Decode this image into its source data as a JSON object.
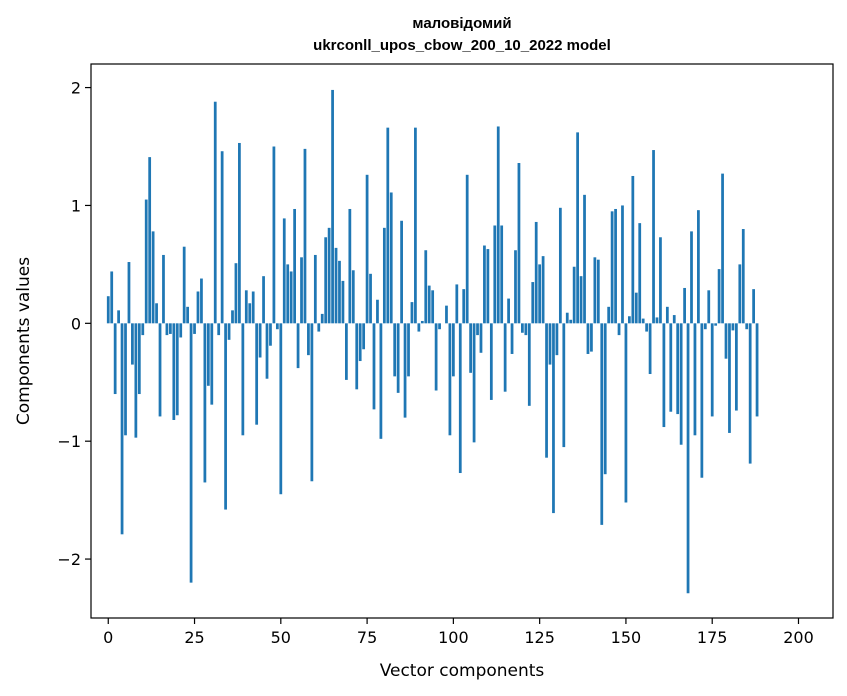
{
  "chart_data": {
    "type": "bar",
    "title_line1": "маловідомий",
    "title_line2": "ukrconll_upos_cbow_200_10_2022 model",
    "xlabel": "Vector components",
    "ylabel": "Components values",
    "xlim": [
      -5,
      210
    ],
    "ylim": [
      -2.5,
      2.2
    ],
    "xticks": [
      0,
      25,
      50,
      75,
      100,
      125,
      150,
      175,
      200
    ],
    "yticks": [
      -2,
      -1,
      0,
      1,
      2
    ],
    "xtick_labels": [
      "0",
      "25",
      "50",
      "75",
      "100",
      "125",
      "150",
      "175",
      "200"
    ],
    "ytick_labels": [
      "−2",
      "−1",
      "0",
      "1",
      "2"
    ],
    "bar_color": "#1f77b4",
    "grid": false,
    "values": [
      0.23,
      0.44,
      -0.6,
      0.11,
      -1.79,
      -0.95,
      0.52,
      -0.35,
      -0.97,
      -0.6,
      -0.1,
      1.05,
      1.41,
      0.78,
      0.17,
      -0.79,
      0.58,
      -0.1,
      -0.09,
      -0.82,
      -0.78,
      -0.12,
      0.65,
      0.14,
      -2.2,
      -0.09,
      0.27,
      0.38,
      -1.35,
      -0.53,
      -0.69,
      1.88,
      -0.1,
      1.46,
      -1.58,
      -0.14,
      0.11,
      0.51,
      1.53,
      -0.95,
      0.28,
      0.17,
      0.27,
      -0.86,
      -0.29,
      0.4,
      -0.47,
      -0.19,
      1.5,
      -0.05,
      -1.45,
      0.89,
      0.5,
      0.44,
      0.97,
      -0.38,
      0.56,
      1.48,
      -0.27,
      -1.34,
      0.58,
      -0.07,
      0.08,
      0.73,
      0.81,
      1.98,
      0.64,
      0.53,
      0.36,
      -0.48,
      0.97,
      0.45,
      -0.56,
      -0.32,
      -0.22,
      1.26,
      0.42,
      -0.73,
      0.2,
      -0.98,
      0.81,
      1.66,
      1.11,
      -0.45,
      -0.59,
      0.87,
      -0.8,
      -0.45,
      0.18,
      1.66,
      -0.07,
      0.02,
      0.62,
      0.32,
      0.28,
      -0.57,
      -0.05,
      0.0,
      0.15,
      -0.95,
      -0.45,
      0.33,
      -1.27,
      0.29,
      1.26,
      -0.42,
      -1.01,
      -0.1,
      -0.25,
      0.66,
      0.63,
      -0.65,
      0.83,
      1.67,
      0.83,
      -0.58,
      0.21,
      -0.26,
      0.62,
      1.36,
      -0.08,
      -0.1,
      -0.7,
      0.35,
      0.86,
      0.5,
      0.57,
      -1.14,
      -0.35,
      -1.61,
      -0.27,
      0.98,
      -1.05,
      0.09,
      0.03,
      0.48,
      1.62,
      0.4,
      1.09,
      -0.26,
      -0.24,
      0.56,
      0.54,
      -1.71,
      -1.28,
      0.14,
      0.95,
      0.97,
      -0.1,
      1.0,
      -1.52,
      0.06,
      1.25,
      0.26,
      0.85,
      0.04,
      -0.07,
      -0.43,
      1.47,
      0.05,
      0.73,
      -0.88,
      0.14,
      -0.75,
      0.07,
      -0.77,
      -1.03,
      0.3,
      -2.29,
      0.78,
      -0.95,
      0.96,
      -1.31,
      -0.05,
      0.28,
      -0.79,
      -0.02,
      0.46,
      1.27,
      -0.3,
      -0.93,
      -0.06,
      -0.74,
      0.5,
      0.8,
      -0.05,
      -1.19,
      0.29,
      -0.79
    ]
  }
}
